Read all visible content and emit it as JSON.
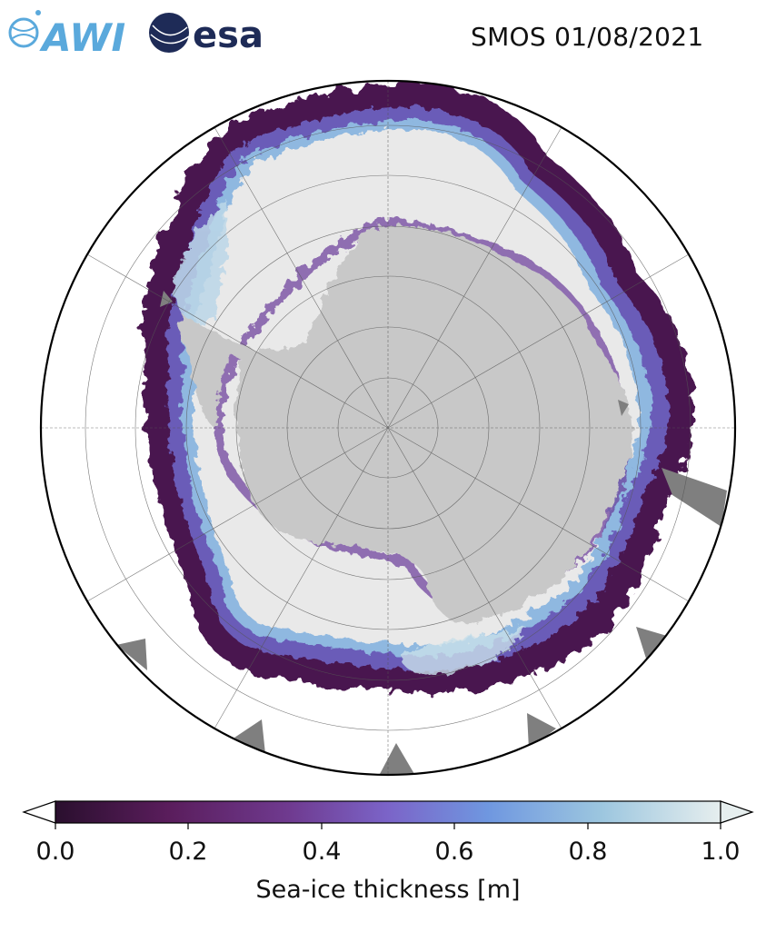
{
  "logos": [
    {
      "name": "AWI",
      "text": "AWI",
      "color": "#5aa9dc"
    },
    {
      "name": "esa",
      "text": "esa",
      "color": "#1e2b57"
    }
  ],
  "title": "SMOS 01/08/2021",
  "colorbar": {
    "label": "Sea-ice thickness [m]",
    "ticks": [
      "0.0",
      "0.2",
      "0.4",
      "0.6",
      "0.8",
      "1.0"
    ],
    "tick_values": [
      0.0,
      0.2,
      0.4,
      0.6,
      0.8,
      1.0
    ],
    "range": [
      0.0,
      1.0
    ],
    "extend": "both",
    "colormap_stops": [
      "#2a0f2e",
      "#5a1d5c",
      "#6f3a8f",
      "#7b64c8",
      "#6f97e0",
      "#9cc6df",
      "#e6eeee"
    ]
  },
  "map": {
    "projection": "south-polar-stereographic",
    "colors": {
      "land": "#c8c8c8",
      "thick_ice": "#e9e9e9",
      "ice_edge": "#4a1550",
      "out_of_bounds": "#7f7f7f",
      "ocean": "#ffffff"
    }
  }
}
